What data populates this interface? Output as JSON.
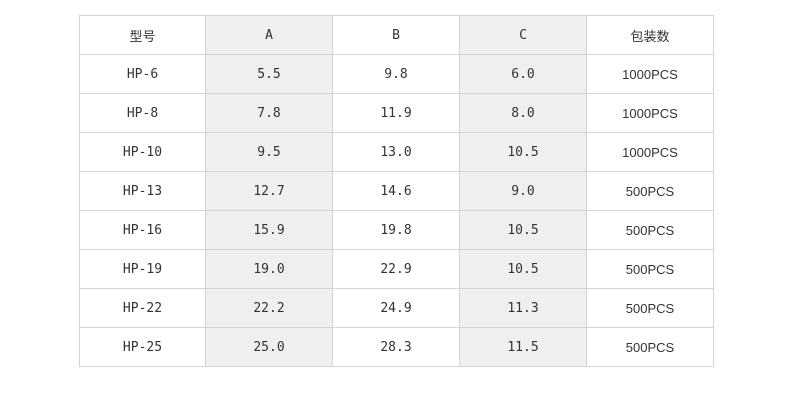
{
  "table": {
    "headers": [
      "型号",
      "A",
      "B",
      "C",
      "包装数"
    ],
    "rows": [
      [
        "HP-6",
        "5.5",
        "9.8",
        "6.0",
        "1000PCS"
      ],
      [
        "HP-8",
        "7.8",
        "11.9",
        "8.0",
        "1000PCS"
      ],
      [
        "HP-10",
        "9.5",
        "13.0",
        "10.5",
        "1000PCS"
      ],
      [
        "HP-13",
        "12.7",
        "14.6",
        "9.0",
        "500PCS"
      ],
      [
        "HP-16",
        "15.9",
        "19.8",
        "10.5",
        "500PCS"
      ],
      [
        "HP-19",
        "19.0",
        "22.9",
        "10.5",
        "500PCS"
      ],
      [
        "HP-22",
        "22.2",
        "24.9",
        "11.3",
        "500PCS"
      ],
      [
        "HP-25",
        "25.0",
        "28.3",
        "11.5",
        "500PCS"
      ]
    ]
  },
  "colors": {
    "shaded_column_bg": "#efefef",
    "border": "#d4d4d4",
    "text": "#333333"
  }
}
